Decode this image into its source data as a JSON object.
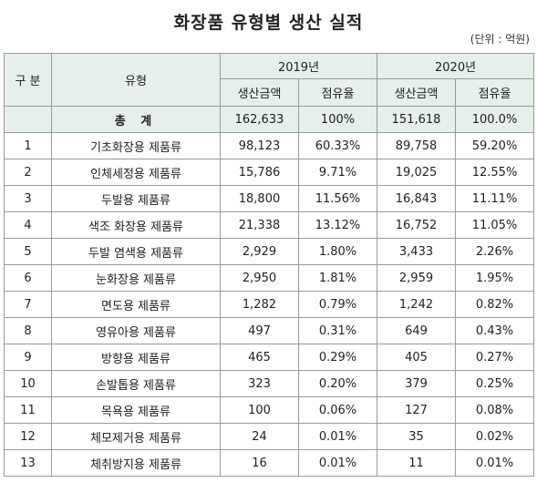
{
  "title": "화장품 유형별 생산 실적",
  "unit": "(단위 : 억원)",
  "header": {
    "no": "구 분",
    "type": "유형",
    "year1": "2019년",
    "year2": "2020년",
    "production": "생산금액",
    "share": "점유율"
  },
  "total": {
    "label": "총 계",
    "p2019": "162,633",
    "s2019": "100%",
    "p2020": "151,618",
    "s2020": "100.0%"
  },
  "rows": [
    {
      "no": "1",
      "type": "기초화장용 제품류",
      "p2019": "98,123",
      "s2019": "60.33%",
      "p2020": "89,758",
      "s2020": "59.20%"
    },
    {
      "no": "2",
      "type": "인체세정용 제품류",
      "p2019": "15,786",
      "s2019": "9.71%",
      "p2020": "19,025",
      "s2020": "12.55%"
    },
    {
      "no": "3",
      "type": "두발용 제품류",
      "p2019": "18,800",
      "s2019": "11.56%",
      "p2020": "16,843",
      "s2020": "11.11%"
    },
    {
      "no": "4",
      "type": "색조 화장용 제품류",
      "p2019": "21,338",
      "s2019": "13.12%",
      "p2020": "16,752",
      "s2020": "11.05%"
    },
    {
      "no": "5",
      "type": "두발 염색용 제품류",
      "p2019": "2,929",
      "s2019": "1.80%",
      "p2020": "3,433",
      "s2020": "2.26%"
    },
    {
      "no": "6",
      "type": "눈화장용 제품류",
      "p2019": "2,950",
      "s2019": "1.81%",
      "p2020": "2,959",
      "s2020": "1.95%"
    },
    {
      "no": "7",
      "type": "면도용 제품류",
      "p2019": "1,282",
      "s2019": "0.79%",
      "p2020": "1,242",
      "s2020": "0.82%"
    },
    {
      "no": "8",
      "type": "영유아용 제품류",
      "p2019": "497",
      "s2019": "0.31%",
      "p2020": "649",
      "s2020": "0.43%"
    },
    {
      "no": "9",
      "type": "방향용 제품류",
      "p2019": "465",
      "s2019": "0.29%",
      "p2020": "405",
      "s2020": "0.27%"
    },
    {
      "no": "10",
      "type": "손발톱용 제품류",
      "p2019": "323",
      "s2019": "0.20%",
      "p2020": "379",
      "s2020": "0.25%"
    },
    {
      "no": "11",
      "type": "목욕용 제품류",
      "p2019": "100",
      "s2019": "0.06%",
      "p2020": "127",
      "s2020": "0.08%"
    },
    {
      "no": "12",
      "type": "체모제거용 제품류",
      "p2019": "24",
      "s2019": "0.01%",
      "p2020": "35",
      "s2020": "0.02%"
    },
    {
      "no": "13",
      "type": "체취방지용 제품류",
      "p2019": "16",
      "s2019": "0.01%",
      "p2020": "11",
      "s2020": "0.01%"
    }
  ]
}
